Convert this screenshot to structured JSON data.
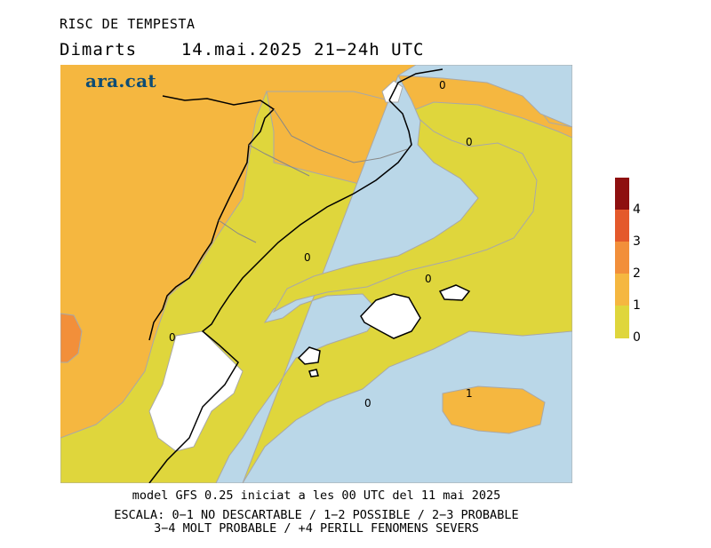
{
  "header": {
    "title": "RISC DE TEMPESTA",
    "day": "Dimarts",
    "date_time": "14.mai.2025 21−24h UTC"
  },
  "logo": {
    "text": "ara.cat"
  },
  "map": {
    "contour_labels": [
      {
        "id": "c0a",
        "text": "0"
      },
      {
        "id": "c0b",
        "text": "0"
      },
      {
        "id": "c0c",
        "text": "0"
      },
      {
        "id": "c0d",
        "text": "0"
      },
      {
        "id": "c0e",
        "text": "0"
      },
      {
        "id": "c0f",
        "text": "0"
      },
      {
        "id": "c1a",
        "text": "1"
      }
    ]
  },
  "legend": {
    "levels": [
      {
        "label": "0",
        "color": "#dfd63c"
      },
      {
        "label": "1",
        "color": "#f5b740"
      },
      {
        "label": "2",
        "color": "#f28f3a"
      },
      {
        "label": "3",
        "color": "#e4592b"
      },
      {
        "label": "4",
        "color": "#8e1010"
      }
    ]
  },
  "colors": {
    "sea": "#bad7e8",
    "land_white": "#ffffff",
    "risk_low": "#dfd63c",
    "risk_1": "#f5b740",
    "risk_2": "#f28f3a"
  },
  "footer": {
    "line1": "model GFS 0.25 iniciat a les 00 UTC del 11 mai 2025",
    "line2": "ESCALA: 0−1 NO DESCARTABLE / 1−2 POSSIBLE / 2−3 PROBABLE",
    "line3": "3−4 MOLT PROBABLE / +4 PERILL FENOMENS SEVERS"
  }
}
